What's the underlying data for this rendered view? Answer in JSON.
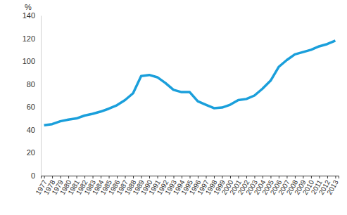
{
  "chart_data": {
    "type": "line",
    "y_label": "%",
    "categories": [
      "1977",
      "1978",
      "1979",
      "1980",
      "1981",
      "1982",
      "1983",
      "1984",
      "1985",
      "1986",
      "1987",
      "1988",
      "1989",
      "1990",
      "1991",
      "1992",
      "1993",
      "1994",
      "1995",
      "1996",
      "1997",
      "1998",
      "1999",
      "2000",
      "2001",
      "2002",
      "2003",
      "2004",
      "2005",
      "2006",
      "2007",
      "2008",
      "2009",
      "2010",
      "2011",
      "2012",
      "2013"
    ],
    "values": [
      44,
      45,
      47.5,
      49,
      50,
      52.5,
      54,
      56,
      58.5,
      61.5,
      66,
      72,
      87,
      88,
      86,
      81,
      75,
      73,
      73,
      65,
      62,
      59,
      59.5,
      62,
      66,
      67,
      70,
      76,
      83,
      95,
      101,
      106,
      108,
      110,
      113,
      115,
      118
    ],
    "color": "#1a9fdb",
    "ylim": [
      0,
      140
    ],
    "yticks": [
      0,
      20,
      40,
      60,
      80,
      100,
      120,
      140
    ],
    "grid": false
  }
}
